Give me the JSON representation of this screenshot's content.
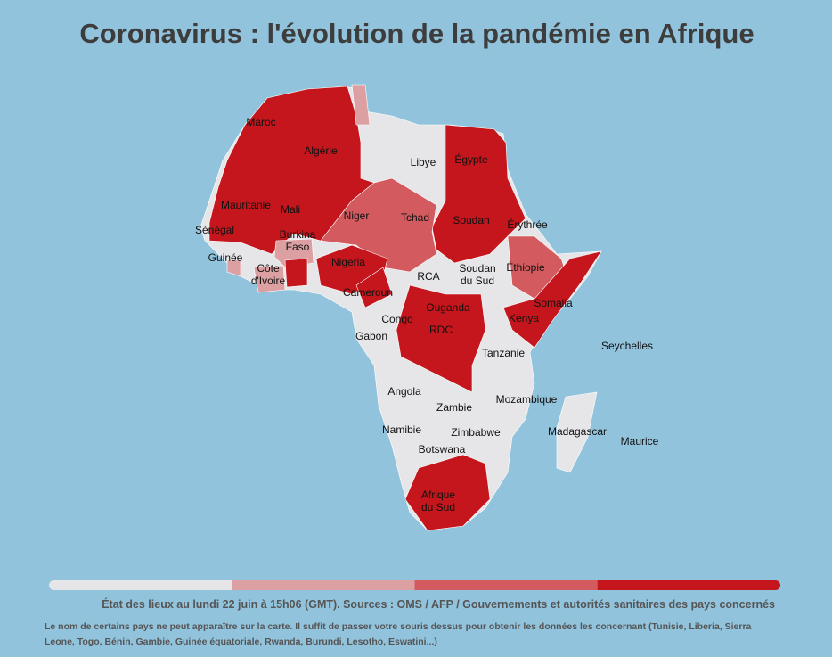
{
  "title": "Coronavirus : l'évolution de la pandémie en Afrique",
  "map_labels": [
    [
      "Maroc"
    ],
    [
      "Algérie"
    ],
    [
      "Libye"
    ],
    [
      "Égypte"
    ],
    [
      "Mauritanie"
    ],
    [
      "Mali"
    ],
    [
      "Niger"
    ],
    [
      "Tchad"
    ],
    [
      "Soudan"
    ],
    [
      "Érythrée"
    ],
    [
      "Sénégal"
    ],
    [
      "Burkina",
      "Faso"
    ],
    [
      "Guinée"
    ],
    [
      "Côte",
      "d'Ivoire"
    ],
    [
      "Nigeria"
    ],
    [
      "RCA"
    ],
    [
      "Soudan",
      "du Sud"
    ],
    [
      "Éthiopie"
    ],
    [
      "Somalia"
    ],
    [
      "Cameroun"
    ],
    [
      "Congo"
    ],
    [
      "Ouganda"
    ],
    [
      "Kenya"
    ],
    [
      "Gabon"
    ],
    [
      "RDC"
    ],
    [
      "Tanzanie"
    ],
    [
      "Seychelles"
    ],
    [
      "Angola"
    ],
    [
      "Mozambique"
    ],
    [
      "Zambie"
    ],
    [
      "Namibie"
    ],
    [
      "Zimbabwe"
    ],
    [
      "Madagascar"
    ],
    [
      "Maurice"
    ],
    [
      "Botswana"
    ],
    [
      "Afrique",
      "du Sud"
    ]
  ],
  "legend_colors": [
    "#e6e6e8",
    "#dca0a2",
    "#d35b5f",
    "#c4161c"
  ],
  "source": "État des lieux au lundi 22 juin à 15h06 (GMT). Sources : OMS / AFP / Gouvernements et autorités sanitaires des pays concernés",
  "note": "Le nom de certains pays ne peut apparaître sur la carte. Il suffit de passer votre souris dessus pour obtenir les données les concernant (Tunisie, Liberia, Sierra Leone, Togo, Bénin, Gambie, Guinée équatoriale, Rwanda, Burundi, Lesotho, Eswatini...)"
}
